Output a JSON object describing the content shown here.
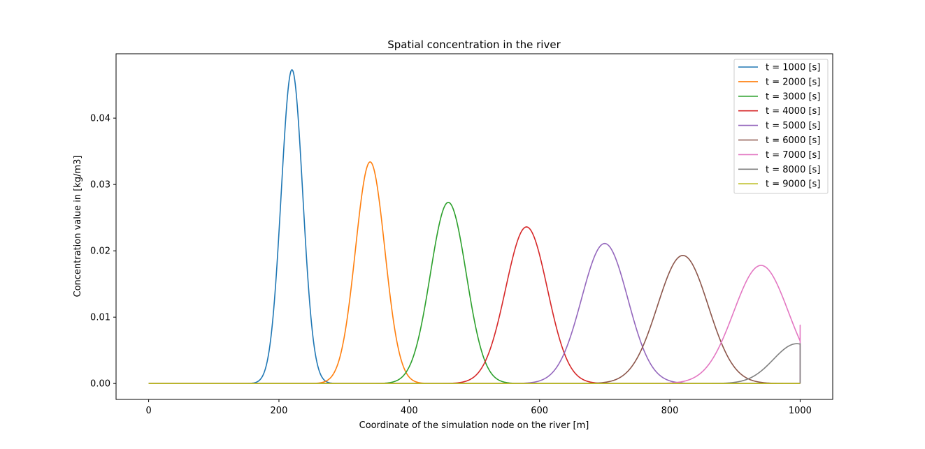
{
  "chart_data": {
    "type": "line",
    "title": "Spatial concentration in the river",
    "xlabel": "Coordinate of the simulation node on the river [m]",
    "ylabel": "Concentration value in [kg/m3]",
    "xlim": [
      -50,
      1050
    ],
    "ylim": [
      -0.0024,
      0.0497
    ],
    "xticks": [
      0,
      200,
      400,
      600,
      800,
      1000
    ],
    "xtick_labels": [
      "0",
      "200",
      "400",
      "600",
      "800",
      "1000"
    ],
    "yticks": [
      0.0,
      0.01,
      0.02,
      0.03,
      0.04
    ],
    "ytick_labels": [
      "0.00",
      "0.01",
      "0.02",
      "0.03",
      "0.04"
    ],
    "grid": false,
    "legend_position": "top-right",
    "x_domain": [
      0,
      1000
    ],
    "series": [
      {
        "name": "t = 1000 [s]",
        "color": "#1f77b4",
        "peak_x": 220,
        "peak_y": 0.0473,
        "sigma": 16.5,
        "cut_y": null
      },
      {
        "name": "t = 2000 [s]",
        "color": "#ff7f0e",
        "peak_x": 340,
        "peak_y": 0.0334,
        "sigma": 22.5,
        "cut_y": null
      },
      {
        "name": "t = 3000 [s]",
        "color": "#2ca02c",
        "peak_x": 460,
        "peak_y": 0.0273,
        "sigma": 27.5,
        "cut_y": null
      },
      {
        "name": "t = 4000 [s]",
        "color": "#d62728",
        "peak_x": 580,
        "peak_y": 0.0236,
        "sigma": 32.0,
        "cut_y": null
      },
      {
        "name": "t = 5000 [s]",
        "color": "#9467bd",
        "peak_x": 700,
        "peak_y": 0.0211,
        "sigma": 35.5,
        "cut_y": null
      },
      {
        "name": "t = 6000 [s]",
        "color": "#8c564b",
        "peak_x": 820,
        "peak_y": 0.0193,
        "sigma": 39.0,
        "cut_y": null
      },
      {
        "name": "t = 7000 [s]",
        "color": "#e377c2",
        "peak_x": 940,
        "peak_y": 0.0178,
        "sigma": 42.0,
        "cut_y": 0.0088
      },
      {
        "name": "t = 8000 [s]",
        "color": "#7f7f7f",
        "peak_x": 995,
        "peak_y": 0.006,
        "sigma": 36.0,
        "cut_y": 0.006
      },
      {
        "name": "t = 9000 [s]",
        "color": "#bcbd22",
        "peak_x": 1000,
        "peak_y": 0.0,
        "sigma": 40.0,
        "cut_y": 0.0
      }
    ]
  }
}
